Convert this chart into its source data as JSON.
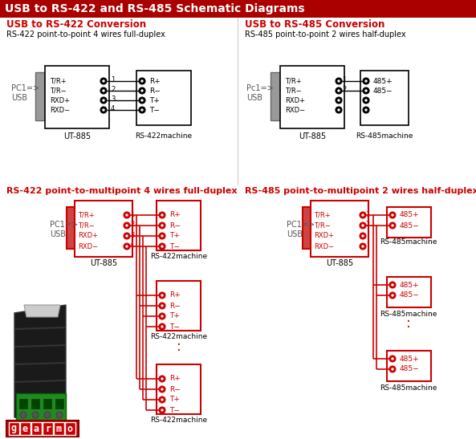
{
  "title": "USB to RS-422 and RS-485 Schematic Diagrams",
  "red": "#cc0000",
  "dark_red": "#aa0000",
  "background": "#ffffff",
  "top_left_title": "USB to RS-422 Conversion",
  "top_left_sub": "RS-422 point-to-point 4 wires full-duplex",
  "top_right_title": "USB to RS-485 Conversion",
  "top_right_sub": "RS-485 point-to-point 2 wires half-duplex",
  "bot_left_title": "RS-422 point-to-multipoint 4 wires full-duplex",
  "bot_right_title": "RS-485 point-to-multipoint 2 wires half-duplex"
}
